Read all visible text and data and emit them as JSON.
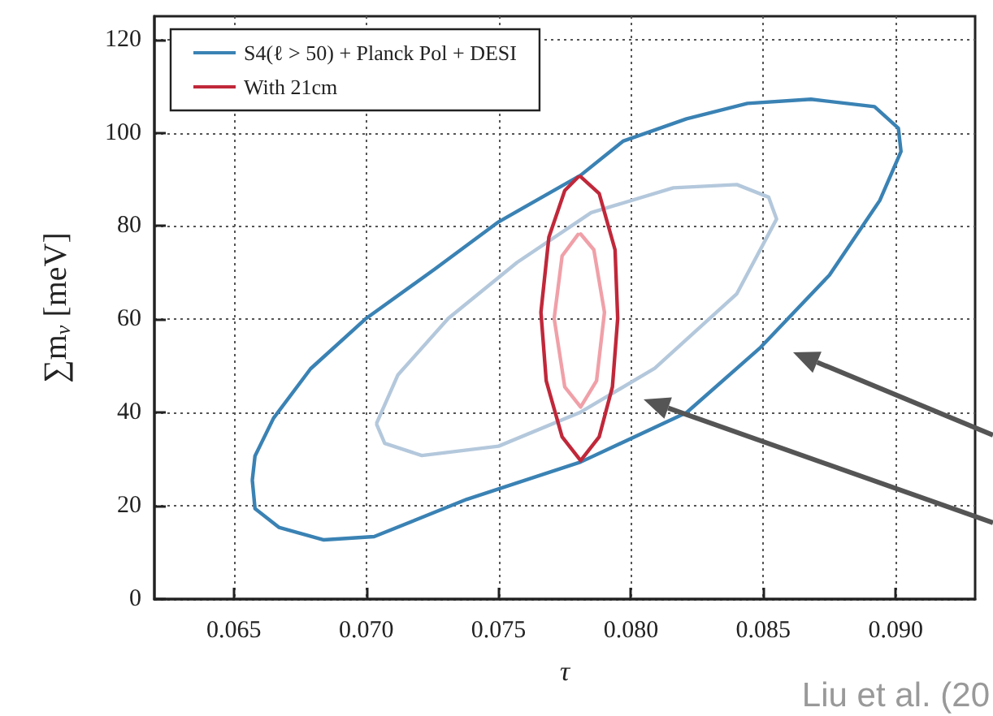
{
  "chart_data": {
    "type": "line",
    "xlabel": "τ",
    "ylabel": "∑m$_{ν}$ [meV]",
    "annotations": [
      "Liu et al. (20"
    ],
    "xlim": [
      0.062,
      0.093
    ],
    "xticks": [
      0.065,
      {
        "value": 0.07,
        "label": "0.070"
      },
      0.075,
      {
        "value": 0.08,
        "label": "0.080"
      },
      0.085,
      {
        "value": 0.09,
        "label": "0.090"
      }
    ],
    "ylim": [
      0,
      125
    ],
    "yticks": [
      0,
      20,
      40,
      60,
      80,
      100,
      120
    ],
    "grid": true,
    "legend": "top left",
    "marker": "none",
    "line_style": "solid",
    "series": [
      {
        "name": "S4(ℓ > 50) + Planck Pol + DESI",
        "color": "#3a82b4",
        "x": [
          0.0657,
          0.0658,
          0.0667,
          0.0684,
          0.0703,
          0.0738,
          0.0781,
          0.0821,
          0.0849,
          0.0875,
          0.0894,
          0.0902,
          0.0901,
          0.0892,
          0.0868,
          0.0844,
          0.0821,
          0.0797,
          0.0781,
          0.075,
          0.0726,
          0.07,
          0.0679,
          0.0665,
          0.0658,
          0.0657
        ],
        "values": [
          25.4,
          19.4,
          15.4,
          12.7,
          13.4,
          21.4,
          29.4,
          40,
          54,
          69.5,
          85.5,
          96,
          101,
          105.6,
          107.2,
          106.3,
          103,
          98.2,
          90.9,
          80.9,
          70.8,
          60.2,
          49.4,
          38.8,
          30.7,
          25.6
        ]
      },
      {
        "color": "#b4c8dc",
        "x": [
          0.0704,
          0.0707,
          0.0721,
          0.075,
          0.0781,
          0.0809,
          0.084,
          0.0855,
          0.0852,
          0.084,
          0.0816,
          0.0785,
          0.0757,
          0.0731,
          0.0712,
          0.0704
        ],
        "values": [
          37.4,
          33.4,
          30.8,
          32.8,
          40.1,
          49.5,
          65.5,
          81.5,
          86.2,
          88.9,
          88.2,
          82.9,
          72.2,
          60.2,
          48.1,
          37.8
        ]
      },
      {
        "name": "With 21cm",
        "color": "#c0283a",
        "x": [
          0.0781,
          0.0788,
          0.0794,
          0.0795,
          0.0793,
          0.0788,
          0.0781,
          0.0774,
          0.0768,
          0.0766,
          0.0769,
          0.0775,
          0.078
        ],
        "values": [
          90.6,
          87,
          74.9,
          60.2,
          45.5,
          34.8,
          29.7,
          34.8,
          46.8,
          61.5,
          77.6,
          87.6,
          90.5
        ]
      },
      {
        "color": "#f0a0a8",
        "x": [
          0.0781,
          0.0786,
          0.079,
          0.0787,
          0.0781,
          0.0775,
          0.0771,
          0.0774,
          0.078
        ],
        "values": [
          78.3,
          74.9,
          61.5,
          46.8,
          41.2,
          45.5,
          60.2,
          73.6,
          78.2
        ]
      }
    ]
  }
}
